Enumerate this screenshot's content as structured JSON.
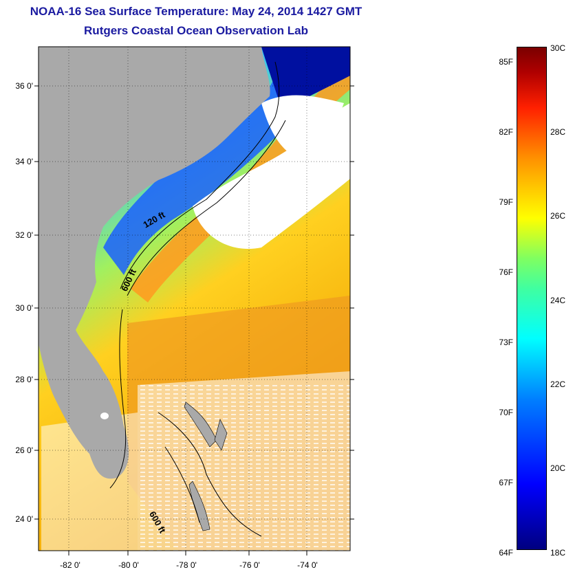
{
  "title": "NOAA-16 Sea Surface Temperature:  May 24, 2014 1427 GMT",
  "subtitle": "Rutgers Coastal Ocean Observation Lab",
  "lat_labels": [
    "36 0'",
    "34 0'",
    "32 0'",
    "30 0'",
    "28 0'",
    "26 0'",
    "24 0'"
  ],
  "lon_labels": [
    "-82 0'",
    "-80 0'",
    "-78 0'",
    "-76 0'",
    "-74 0'"
  ],
  "contour_labels": [
    "120 ft",
    "600 ft",
    "600 ft"
  ],
  "colorbar": {
    "f_labels": [
      "85F",
      "82F",
      "79F",
      "76F",
      "73F",
      "70F",
      "67F",
      "64F"
    ],
    "c_labels": [
      "30C",
      "28C",
      "26C",
      "24C",
      "22C",
      "20C",
      "18C"
    ]
  },
  "colors": {
    "land": "#a9a9a9",
    "title": "#1a1aa0",
    "cloud": "#ffffff"
  }
}
